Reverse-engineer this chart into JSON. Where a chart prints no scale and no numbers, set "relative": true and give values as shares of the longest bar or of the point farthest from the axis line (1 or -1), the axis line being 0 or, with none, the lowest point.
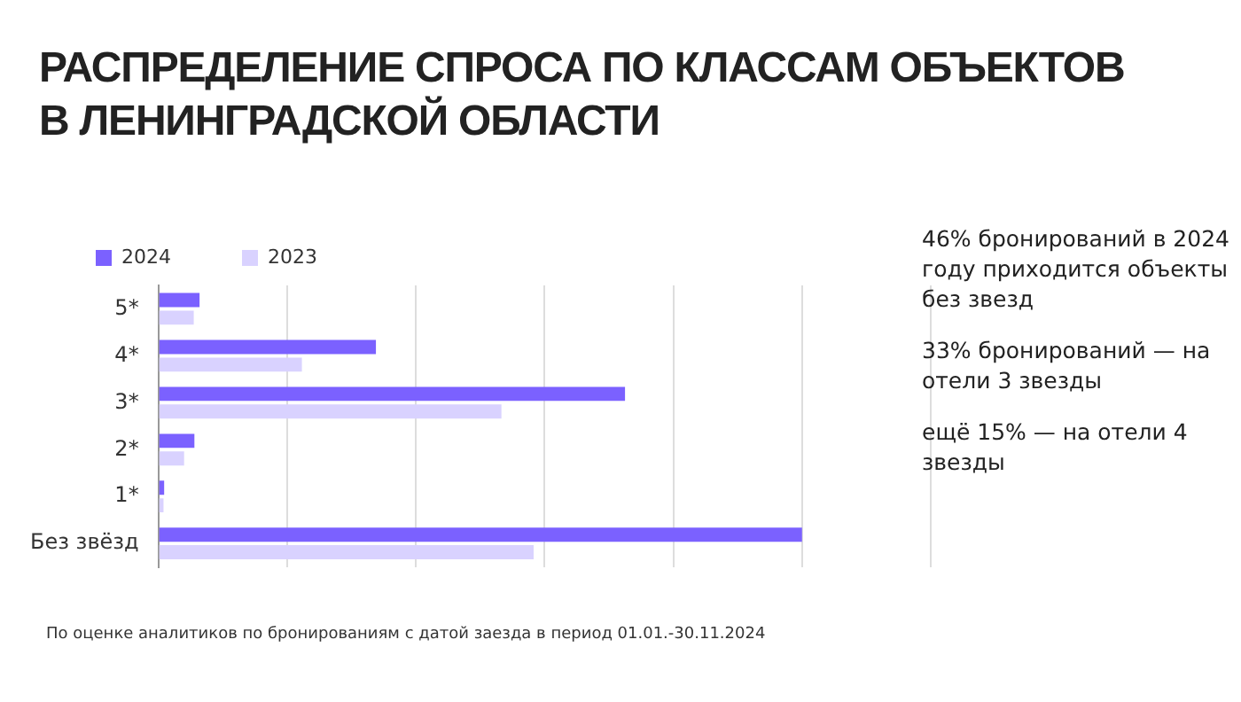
{
  "chart_data": {
    "type": "bar",
    "orientation": "horizontal",
    "relative": true,
    "title": "РАСПРЕДЕЛЕНИЕ СПРОСА ПО КЛАССАМ ОБЪЕКТОВ В ЛЕНИНГРАДСКОЙ ОБЛАСТИ",
    "categories": [
      "5*",
      "4*",
      "3*",
      "2*",
      "1*",
      "Без звёзд"
    ],
    "series": [
      {
        "name": "2024",
        "color": "#7b61ff",
        "values": [
          0.064,
          0.338,
          0.725,
          0.056,
          0.009,
          1
        ]
      },
      {
        "name": "2023",
        "color": "#d9d2ff",
        "values": [
          0.055,
          0.223,
          0.533,
          0.04,
          0.008,
          0.583
        ]
      }
    ],
    "grid": "x",
    "legend": "top left",
    "annotations": [
      "46% бронирований в 2024 году приходится объекты без звезд",
      "33% бронирований — на отели 3 звезды",
      "ещё 15% — на отели 4 звезды",
      "По оценке аналитиков по бронированиям с датой заезда в период 01.01.-30.11.2024"
    ]
  }
}
